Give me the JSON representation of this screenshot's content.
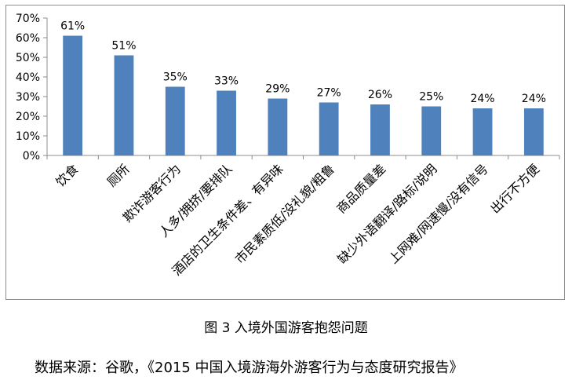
{
  "chart_data": {
    "type": "bar",
    "categories": [
      "饮食",
      "厕所",
      "欺诈游客行为",
      "人多/拥挤/要排队",
      "酒店的卫生条件差、有异味",
      "市民素质低/没礼貌/粗鲁",
      "商品质量差",
      "缺少外语翻译/路标/说明",
      "上网难/网速慢/没有信号",
      "出行不方便"
    ],
    "values": [
      61,
      51,
      35,
      33,
      29,
      27,
      26,
      25,
      24,
      24
    ],
    "data_labels": [
      "61%",
      "51%",
      "35%",
      "33%",
      "29%",
      "27%",
      "26%",
      "25%",
      "24%",
      "24%"
    ],
    "y_ticks": [
      "0%",
      "10%",
      "20%",
      "30%",
      "40%",
      "50%",
      "60%",
      "70%"
    ],
    "ylim": [
      0,
      70
    ],
    "grid": false,
    "bar_color": "#4f81bd"
  },
  "caption": "图 3  入境外国游客抱怨问题",
  "source": "数据来源：谷歌，《2015 中国入境游海外游客行为与态度研究报告》"
}
